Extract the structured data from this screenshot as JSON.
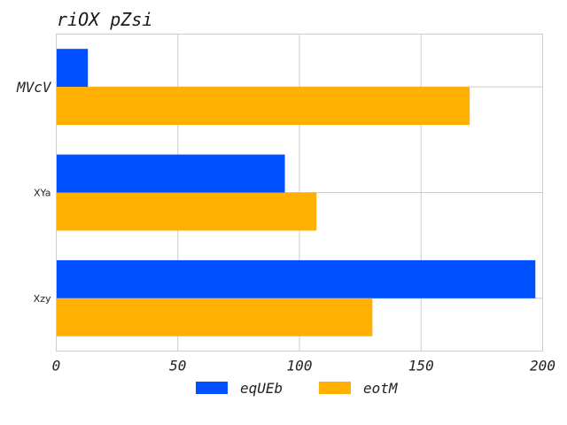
{
  "chart_data": {
    "type": "bar",
    "orientation": "horizontal",
    "title": "riOX pZsi",
    "xlabel": "",
    "ylabel": "",
    "categories": [
      "MVcV",
      "XYa",
      "Xzy"
    ],
    "series": [
      {
        "name": "eqUEb",
        "color": "#0050ff",
        "values": [
          13,
          94,
          197
        ]
      },
      {
        "name": "eotM",
        "color": "#ffb000",
        "values": [
          170,
          107,
          130
        ]
      }
    ],
    "xlim": [
      0,
      200
    ],
    "xticks": [
      0,
      50,
      100,
      150,
      200
    ],
    "xtick_labels": [
      "0",
      "50",
      "100",
      "150",
      "200"
    ],
    "grid": true,
    "legend_position": "bottom"
  }
}
